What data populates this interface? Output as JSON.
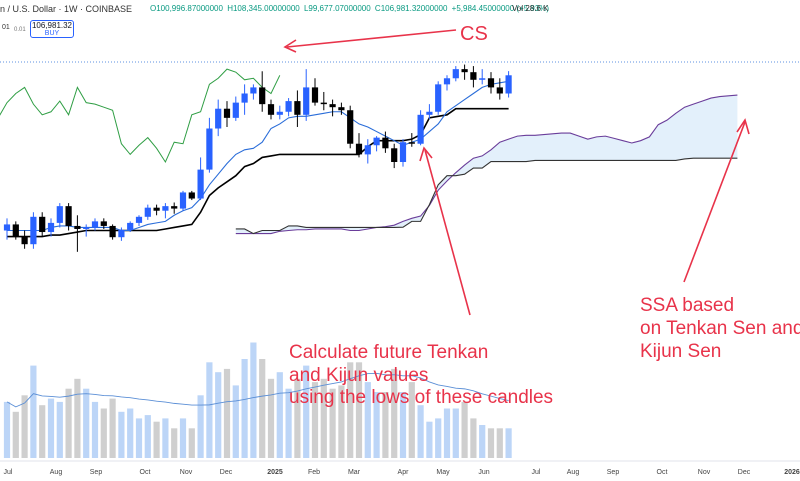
{
  "header": {
    "symbol_title": "n / U.S. Dollar · 1W · COINBASE",
    "ohlc": {
      "open": "O100,996.87000000",
      "high": "H108,345.00000000",
      "low": "L99,677.07000000",
      "close": "C106,981.32000000",
      "change": "+5,984.45000000 (+5.93%)"
    },
    "volume": "Vol 28.6 K",
    "sell_label": "01",
    "spread": "0.01",
    "buy_price": "106,981.32",
    "buy_label": "BUY"
  },
  "time_axis": {
    "labels": [
      "Jul",
      "Aug",
      "Sep",
      "Oct",
      "Nov",
      "Dec",
      "2025",
      "Feb",
      "Mar",
      "Apr",
      "May",
      "Jun",
      "Jul",
      "Aug",
      "Sep",
      "Oct",
      "Nov",
      "Dec",
      "2026"
    ]
  },
  "annotations": {
    "cs": "CS",
    "tenkan_note": [
      "Calculate future Tenkan",
      "and Kijun values",
      "using the lows of these candles"
    ],
    "ssa_note": [
      "SSA based",
      "on Tenkan Sen and",
      "Kijun Sen"
    ]
  },
  "colors": {
    "bull": "#2962ff",
    "bear": "#000000",
    "annotation": "#e8334a",
    "tenkan": "#2a6dd9",
    "kijun": "#000000",
    "chikou": "#2f9e44",
    "span_a": "#6a3d9a",
    "span_b": "#333333",
    "cloud": "#e3f0fb",
    "vol_bull": "#bcd5f7",
    "vol_bear": "#cfcfcf",
    "vol_ma": "#5b8fd6"
  },
  "chart_data": {
    "type": "candlestick",
    "timeframe": "1W",
    "candles": [
      {
        "o": 56000,
        "h": 60000,
        "l": 53000,
        "c": 58000
      },
      {
        "o": 58000,
        "h": 59000,
        "l": 53000,
        "c": 54000
      },
      {
        "o": 54000,
        "h": 56000,
        "l": 50000,
        "c": 51500
      },
      {
        "o": 51500,
        "h": 62000,
        "l": 50000,
        "c": 60500
      },
      {
        "o": 60500,
        "h": 62000,
        "l": 54000,
        "c": 55500
      },
      {
        "o": 55500,
        "h": 60000,
        "l": 54000,
        "c": 58500
      },
      {
        "o": 58500,
        "h": 65000,
        "l": 57000,
        "c": 64000
      },
      {
        "o": 64000,
        "h": 65000,
        "l": 56000,
        "c": 57500
      },
      {
        "o": 57500,
        "h": 61000,
        "l": 49000,
        "c": 56500
      },
      {
        "o": 56500,
        "h": 58000,
        "l": 54000,
        "c": 57000
      },
      {
        "o": 57000,
        "h": 60000,
        "l": 56000,
        "c": 59000
      },
      {
        "o": 59000,
        "h": 60000,
        "l": 56500,
        "c": 57500
      },
      {
        "o": 57500,
        "h": 58000,
        "l": 53000,
        "c": 53800
      },
      {
        "o": 53800,
        "h": 57000,
        "l": 52600,
        "c": 56200
      },
      {
        "o": 56200,
        "h": 59000,
        "l": 55500,
        "c": 58500
      },
      {
        "o": 58500,
        "h": 61000,
        "l": 57500,
        "c": 60500
      },
      {
        "o": 60500,
        "h": 64500,
        "l": 59500,
        "c": 63500
      },
      {
        "o": 63500,
        "h": 64500,
        "l": 61000,
        "c": 62500
      },
      {
        "o": 62500,
        "h": 65000,
        "l": 60000,
        "c": 64000
      },
      {
        "o": 64000,
        "h": 65200,
        "l": 61500,
        "c": 63200
      },
      {
        "o": 63200,
        "h": 69000,
        "l": 62500,
        "c": 68500
      },
      {
        "o": 68500,
        "h": 69000,
        "l": 66000,
        "c": 66500
      },
      {
        "o": 66500,
        "h": 80000,
        "l": 66000,
        "c": 76000
      },
      {
        "o": 76000,
        "h": 93000,
        "l": 75000,
        "c": 89500
      },
      {
        "o": 89500,
        "h": 99000,
        "l": 87000,
        "c": 96000
      },
      {
        "o": 96000,
        "h": 98500,
        "l": 90000,
        "c": 93000
      },
      {
        "o": 93000,
        "h": 100000,
        "l": 92000,
        "c": 98000
      },
      {
        "o": 98000,
        "h": 104000,
        "l": 94000,
        "c": 101000
      },
      {
        "o": 101000,
        "h": 104000,
        "l": 99000,
        "c": 103000
      },
      {
        "o": 103000,
        "h": 108300,
        "l": 95000,
        "c": 97500
      },
      {
        "o": 97500,
        "h": 99000,
        "l": 92500,
        "c": 94000
      },
      {
        "o": 94000,
        "h": 97000,
        "l": 92500,
        "c": 95000
      },
      {
        "o": 95000,
        "h": 99500,
        "l": 93500,
        "c": 98500
      },
      {
        "o": 98500,
        "h": 102000,
        "l": 90000,
        "c": 94000
      },
      {
        "o": 94000,
        "h": 109000,
        "l": 92000,
        "c": 103000
      },
      {
        "o": 103000,
        "h": 106000,
        "l": 97000,
        "c": 98000
      },
      {
        "o": 98000,
        "h": 101500,
        "l": 95500,
        "c": 97500
      },
      {
        "o": 97500,
        "h": 99000,
        "l": 93500,
        "c": 96500
      },
      {
        "o": 96500,
        "h": 98000,
        "l": 94000,
        "c": 95500
      },
      {
        "o": 95500,
        "h": 97000,
        "l": 83000,
        "c": 84500
      },
      {
        "o": 84500,
        "h": 88000,
        "l": 80000,
        "c": 81000
      },
      {
        "o": 81000,
        "h": 86000,
        "l": 78000,
        "c": 84000
      },
      {
        "o": 84000,
        "h": 87000,
        "l": 82000,
        "c": 86500
      },
      {
        "o": 86500,
        "h": 88500,
        "l": 81500,
        "c": 83000
      },
      {
        "o": 83000,
        "h": 84500,
        "l": 76500,
        "c": 78500
      },
      {
        "o": 78500,
        "h": 86000,
        "l": 77000,
        "c": 85000
      },
      {
        "o": 85000,
        "h": 88000,
        "l": 83500,
        "c": 84500
      },
      {
        "o": 84500,
        "h": 95500,
        "l": 84000,
        "c": 94000
      },
      {
        "o": 94000,
        "h": 97500,
        "l": 92500,
        "c": 95000
      },
      {
        "o": 95000,
        "h": 105000,
        "l": 94000,
        "c": 104000
      },
      {
        "o": 104000,
        "h": 107000,
        "l": 102000,
        "c": 106000
      },
      {
        "o": 106000,
        "h": 110000,
        "l": 105000,
        "c": 109000
      },
      {
        "o": 109000,
        "h": 110500,
        "l": 105500,
        "c": 108000
      },
      {
        "o": 108000,
        "h": 110000,
        "l": 103000,
        "c": 105500
      },
      {
        "o": 105500,
        "h": 109000,
        "l": 104000,
        "c": 106000
      },
      {
        "o": 106000,
        "h": 108000,
        "l": 101000,
        "c": 103000
      },
      {
        "o": 103000,
        "h": 106000,
        "l": 99000,
        "c": 101000
      },
      {
        "o": 100996.87,
        "h": 108345,
        "l": 99677.07,
        "c": 106981.32
      }
    ],
    "volume": [
      17,
      14,
      19,
      28,
      16,
      18,
      17,
      21,
      24,
      21,
      17,
      15,
      18,
      14,
      15,
      12,
      13,
      11,
      12,
      9,
      12,
      9,
      19,
      29,
      26,
      27,
      22,
      30,
      35,
      30,
      24,
      26,
      21,
      24,
      28,
      23,
      24,
      21,
      22,
      29,
      29,
      23,
      20,
      20,
      27,
      20,
      23,
      16,
      11,
      12,
      15,
      15,
      17,
      12,
      10,
      9,
      9,
      9
    ],
    "volume_bull": [
      1,
      0,
      0,
      1,
      0,
      1,
      1,
      0,
      0,
      1,
      1,
      0,
      0,
      1,
      1,
      1,
      1,
      0,
      1,
      0,
      1,
      0,
      1,
      1,
      1,
      0,
      1,
      1,
      1,
      0,
      0,
      1,
      1,
      0,
      1,
      0,
      0,
      0,
      0,
      0,
      0,
      1,
      1,
      0,
      0,
      1,
      0,
      1,
      1,
      1,
      1,
      1,
      0,
      0,
      1,
      0,
      0,
      1
    ],
    "tenkan": [
      56000,
      56000,
      56000,
      56000,
      56000,
      57000,
      57500,
      57500,
      57000,
      57000,
      57000,
      57000,
      57000,
      56000,
      56000,
      57000,
      58000,
      58500,
      59000,
      61000,
      62500,
      63500,
      66500,
      71000,
      74500,
      78000,
      81000,
      82500,
      83000,
      85000,
      89500,
      91000,
      93000,
      93500,
      93500,
      94000,
      94500,
      95000,
      95000,
      93000,
      91000,
      90000,
      88500,
      87000,
      85500,
      84000,
      85000,
      86000,
      88500,
      91000,
      95000,
      97000,
      99000,
      101000,
      103000,
      104000,
      104500,
      105000
    ],
    "kijun": [
      54000,
      54000,
      54000,
      54000,
      54000,
      54500,
      54500,
      55000,
      55500,
      56000,
      56000,
      56000,
      56000,
      56000,
      56000,
      56000,
      56000,
      56000,
      56500,
      57000,
      57500,
      58000,
      62000,
      67500,
      70000,
      72000,
      74000,
      77000,
      78000,
      80000,
      80500,
      81000,
      81000,
      81000,
      81000,
      81000,
      81000,
      81000,
      81000,
      81000,
      81000,
      83500,
      85500,
      85500,
      85500,
      85500,
      86000,
      87500,
      93000,
      93500,
      94000,
      96000,
      96000,
      96000,
      96000,
      96000,
      96000,
      96000
    ],
    "chikou_note": "lagging span plotted 26 periods back",
    "span_a_note": "leading span A projected 26 periods forward",
    "span_b_note": "leading span B projected 26 periods forward"
  }
}
